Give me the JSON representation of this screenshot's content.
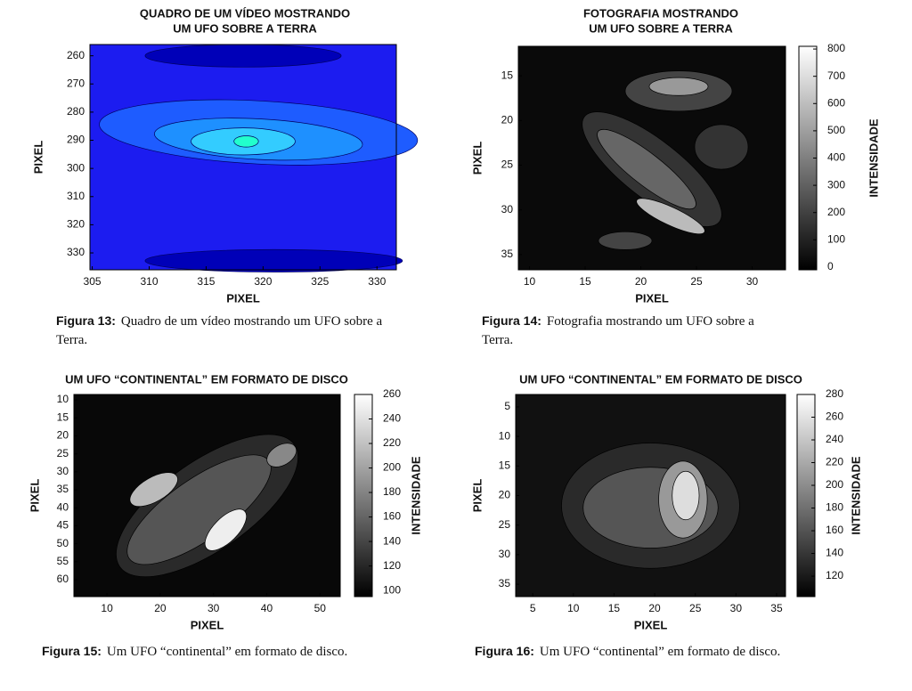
{
  "chart_data": [
    {
      "type": "contour",
      "title": [
        "QUADRO DE UM VÍDEO MOSTRANDO",
        "UM UFO SOBRE A TERRA"
      ],
      "xlabel": "PIXEL",
      "ylabel": "PIXEL",
      "xlim": [
        304.8,
        331.7
      ],
      "ylim": [
        256,
        336
      ],
      "y_reversed": true,
      "xticks": [
        305,
        310,
        315,
        320,
        325,
        330
      ],
      "yticks": [
        260,
        270,
        280,
        290,
        300,
        310,
        320,
        330
      ],
      "colormap": "jet"
    },
    {
      "type": "contour",
      "title": [
        "FOTOGRAFIA MOSTRANDO",
        "UM UFO SOBRE A TERRA"
      ],
      "xlabel": "PIXEL",
      "ylabel": "PIXEL",
      "xlim": [
        9,
        33
      ],
      "ylim": [
        11.7,
        36.7
      ],
      "y_reversed": true,
      "xticks": [
        10,
        15,
        20,
        25,
        30
      ],
      "yticks": [
        15,
        20,
        25,
        30,
        35
      ],
      "colormap": "gray",
      "colorbar": {
        "label": "INTENSIDADE",
        "lim": [
          -10,
          810
        ],
        "ticks": [
          0,
          100,
          200,
          300,
          400,
          500,
          600,
          700,
          800
        ]
      }
    },
    {
      "type": "contour",
      "title": [
        "UM UFO “CONTINENTAL” EM FORMATO DE DISCO"
      ],
      "xlabel": "PIXEL",
      "ylabel": "PIXEL",
      "xlim": [
        3.8,
        53.8
      ],
      "ylim": [
        8.5,
        64.7
      ],
      "y_reversed": true,
      "xticks": [
        10,
        20,
        30,
        40,
        50
      ],
      "yticks": [
        10,
        15,
        20,
        25,
        30,
        35,
        40,
        45,
        50,
        55,
        60
      ],
      "colormap": "gray",
      "colorbar": {
        "label": "INTENSIDADE",
        "lim": [
          95,
          260
        ],
        "ticks": [
          100,
          120,
          140,
          160,
          180,
          200,
          220,
          240,
          260
        ]
      }
    },
    {
      "type": "contour",
      "title": [
        "UM UFO “CONTINENTAL” EM FORMATO DE DISCO"
      ],
      "xlabel": "PIXEL",
      "ylabel": "PIXEL",
      "xlim": [
        2.9,
        36.1
      ],
      "ylim": [
        2.9,
        37.1
      ],
      "y_reversed": true,
      "xticks": [
        5,
        10,
        15,
        20,
        25,
        30,
        35
      ],
      "yticks": [
        5,
        10,
        15,
        20,
        25,
        30,
        35
      ],
      "colormap": "gray",
      "colorbar": {
        "label": "INTENSIDADE",
        "lim": [
          102,
          280
        ],
        "ticks": [
          120,
          140,
          160,
          180,
          200,
          220,
          240,
          260,
          280
        ]
      }
    }
  ],
  "captions": [
    {
      "label": "Figura 13:",
      "text": "Quadro de um vídeo mostrando um UFO sobre a Terra."
    },
    {
      "label": "Figura 14:",
      "text": "Fotografia mostrando um UFO sobre a Terra."
    },
    {
      "label": "Figura 15:",
      "text": "Um UFO “continental” em formato de disco."
    },
    {
      "label": "Figura 16:",
      "text": "Um UFO “continental” em formato de disco."
    }
  ]
}
